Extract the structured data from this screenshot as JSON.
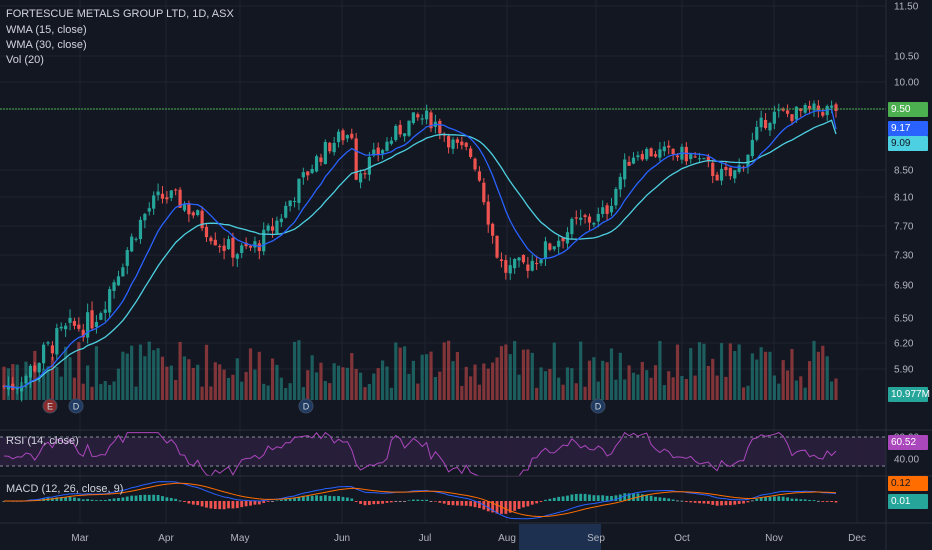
{
  "header": {
    "title": "FORTESCUE METALS GROUP LTD, 1D, ASX",
    "indicators": [
      "WMA (15, close)",
      "WMA (30, close)",
      "Vol (20)"
    ]
  },
  "price_axis": {
    "ticks": [
      "11.50",
      "10.50",
      "10.00",
      "9.50",
      "9.17",
      "9.09",
      "8.50",
      "8.10",
      "7.70",
      "7.30",
      "6.90",
      "6.50",
      "6.20",
      "5.90",
      "10.977M"
    ]
  },
  "rsi_pane": {
    "label": "RSI (14, close)",
    "ticks": [
      "80.00",
      "40.00"
    ],
    "current": "60.52"
  },
  "macd_pane": {
    "label": "MACD (12, 26, close, 9)",
    "current_a": "0.12",
    "current_b": "0.01"
  },
  "time_axis": {
    "months": [
      "Mar",
      "Apr",
      "May",
      "Jun",
      "Jul",
      "Aug",
      "Sep",
      "Oct",
      "Nov",
      "Dec"
    ]
  },
  "events": [
    "E",
    "D",
    "D",
    "D"
  ],
  "colors": {
    "background": "#131722",
    "up": "#26a69a",
    "down": "#ef5350",
    "wma15": "#2962ff",
    "wma30": "#4dd0e1",
    "resistance": "#4caf50",
    "rsi": "#ab47bc",
    "macd": "#2962ff",
    "signal": "#ff6d00"
  },
  "chart_data": {
    "type": "candlestick",
    "title": "FORTESCUE METALS GROUP LTD, 1D, ASX",
    "x_range": [
      "Feb",
      "Nov"
    ],
    "resistance_level": 9.5,
    "last_close": 9.5,
    "wma15_last": 9.17,
    "wma30_last": 9.09,
    "price_anchors": [
      {
        "month": "Feb",
        "close": 5.7
      },
      {
        "month": "Mar",
        "close": 6.4
      },
      {
        "month": "Apr",
        "close": 8.1
      },
      {
        "month": "May",
        "close": 7.35
      },
      {
        "month": "early Jun",
        "close": 9.1
      },
      {
        "month": "Jun",
        "close": 8.4
      },
      {
        "month": "Jul",
        "close": 9.35
      },
      {
        "month": "mid Jul",
        "close": 8.8
      },
      {
        "month": "Aug",
        "close": 7.1
      },
      {
        "month": "Sep",
        "close": 7.8
      },
      {
        "month": "mid Sep",
        "close": 8.8
      },
      {
        "month": "Oct",
        "close": 8.75
      },
      {
        "month": "mid Oct",
        "close": 8.4
      },
      {
        "month": "Nov",
        "close": 9.4
      },
      {
        "month": "late Nov",
        "close": 9.5
      }
    ],
    "rsi_last": 60.52,
    "macd_last": 0.12,
    "macd_hist_last": 0.01,
    "volume_last": "10.977M"
  }
}
